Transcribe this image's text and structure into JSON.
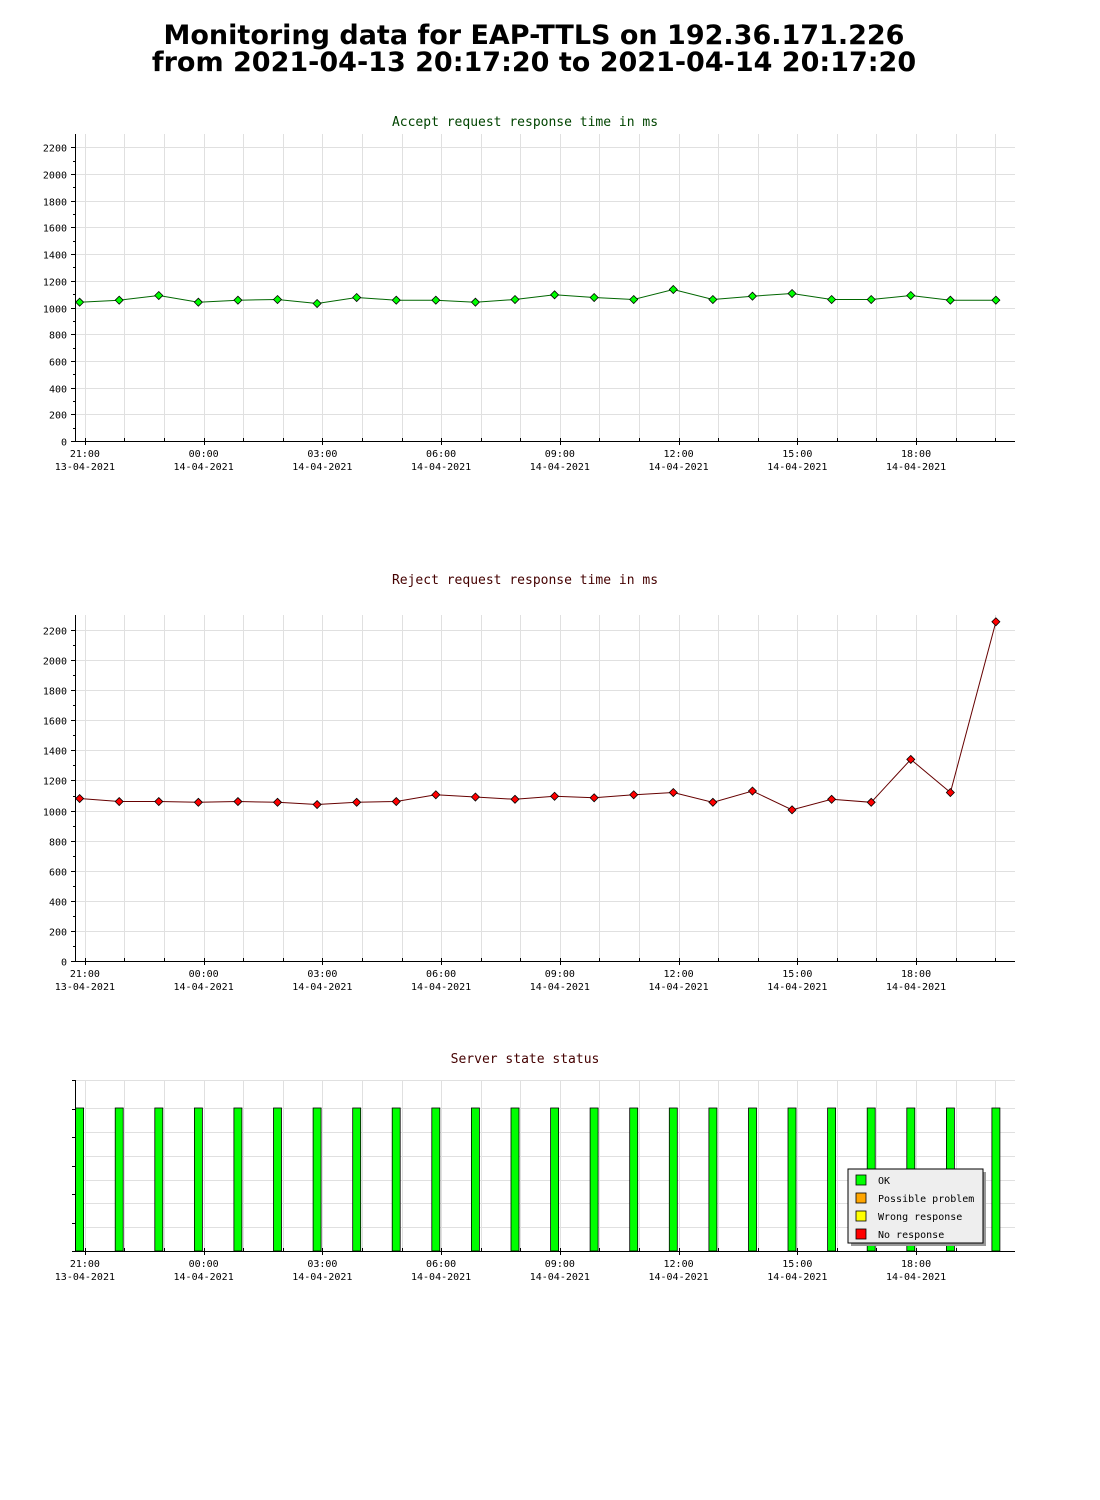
{
  "title": {
    "line1": "Monitoring data for EAP-TTLS on 192.36.171.226",
    "line2": "from 2021-04-13 20:17:20 to 2021-04-14 20:17:20"
  },
  "x_axis": {
    "ticks": [
      {
        "time": "21:00",
        "date": "13-04-2021"
      },
      {
        "time": "00:00",
        "date": "14-04-2021"
      },
      {
        "time": "03:00",
        "date": "14-04-2021"
      },
      {
        "time": "06:00",
        "date": "14-04-2021"
      },
      {
        "time": "09:00",
        "date": "14-04-2021"
      },
      {
        "time": "12:00",
        "date": "14-04-2021"
      },
      {
        "time": "15:00",
        "date": "14-04-2021"
      },
      {
        "time": "18:00",
        "date": "14-04-2021"
      }
    ]
  },
  "colors": {
    "accept": "#00ff00",
    "reject": "#ff0000",
    "accept_title": "#004400",
    "reject_title": "#440000",
    "ok": "#00ff00",
    "possible_problem": "#ffa500",
    "wrong_response": "#ffff00",
    "no_response": "#ff0000"
  },
  "chart_data": [
    {
      "type": "line",
      "title": "Accept request response time in ms",
      "ylim": [
        0,
        2300
      ],
      "yticks": [
        0,
        200,
        400,
        600,
        800,
        1000,
        1200,
        1400,
        1600,
        1800,
        2000,
        2200
      ],
      "grid": true,
      "x_range": [
        "2021-04-13 20:45",
        "2021-04-14 20:30"
      ],
      "x": [
        "2021-04-13 20:52",
        "2021-04-13 21:52",
        "2021-04-13 22:52",
        "2021-04-13 23:52",
        "2021-04-14 00:52",
        "2021-04-14 01:52",
        "2021-04-14 02:52",
        "2021-04-14 03:52",
        "2021-04-14 04:52",
        "2021-04-14 05:52",
        "2021-04-14 06:52",
        "2021-04-14 07:52",
        "2021-04-14 08:52",
        "2021-04-14 09:52",
        "2021-04-14 10:52",
        "2021-04-14 11:52",
        "2021-04-14 12:52",
        "2021-04-14 13:52",
        "2021-04-14 14:52",
        "2021-04-14 15:52",
        "2021-04-14 16:52",
        "2021-04-14 17:52",
        "2021-04-14 18:52",
        "2021-04-14 20:01"
      ],
      "series": [
        {
          "values": [
            1040,
            1055,
            1090,
            1040,
            1055,
            1060,
            1030,
            1075,
            1055,
            1055,
            1040,
            1060,
            1095,
            1075,
            1060,
            1135,
            1060,
            1085,
            1105,
            1060,
            1060,
            1090,
            1055,
            1055
          ]
        }
      ]
    },
    {
      "type": "line",
      "title": "Reject request response time in ms",
      "ylim": [
        0,
        2300
      ],
      "yticks": [
        0,
        200,
        400,
        600,
        800,
        1000,
        1200,
        1400,
        1600,
        1800,
        2000,
        2200
      ],
      "grid": true,
      "x_range": [
        "2021-04-13 20:45",
        "2021-04-14 20:30"
      ],
      "x": [
        "2021-04-13 20:52",
        "2021-04-13 21:52",
        "2021-04-13 22:52",
        "2021-04-13 23:52",
        "2021-04-14 00:52",
        "2021-04-14 01:52",
        "2021-04-14 02:52",
        "2021-04-14 03:52",
        "2021-04-14 04:52",
        "2021-04-14 05:52",
        "2021-04-14 06:52",
        "2021-04-14 07:52",
        "2021-04-14 08:52",
        "2021-04-14 09:52",
        "2021-04-14 10:52",
        "2021-04-14 11:52",
        "2021-04-14 12:52",
        "2021-04-14 13:52",
        "2021-04-14 14:52",
        "2021-04-14 15:52",
        "2021-04-14 16:52",
        "2021-04-14 17:52",
        "2021-04-14 18:52",
        "2021-04-14 20:01"
      ],
      "series": [
        {
          "values": [
            1080,
            1060,
            1060,
            1055,
            1060,
            1055,
            1040,
            1055,
            1060,
            1105,
            1090,
            1075,
            1095,
            1085,
            1105,
            1120,
            1055,
            1130,
            1005,
            1075,
            1055,
            1340,
            1120,
            2255
          ]
        }
      ]
    },
    {
      "type": "bar",
      "title": "Server state status",
      "x_range": [
        "2021-04-13 20:45",
        "2021-04-14 20:30"
      ],
      "x": [
        "2021-04-13 20:52",
        "2021-04-13 21:52",
        "2021-04-13 22:52",
        "2021-04-13 23:52",
        "2021-04-14 00:52",
        "2021-04-14 01:52",
        "2021-04-14 02:52",
        "2021-04-14 03:52",
        "2021-04-14 04:52",
        "2021-04-14 05:52",
        "2021-04-14 06:52",
        "2021-04-14 07:52",
        "2021-04-14 08:52",
        "2021-04-14 09:52",
        "2021-04-14 10:52",
        "2021-04-14 11:52",
        "2021-04-14 12:52",
        "2021-04-14 13:52",
        "2021-04-14 14:52",
        "2021-04-14 15:52",
        "2021-04-14 16:52",
        "2021-04-14 17:52",
        "2021-04-14 18:52",
        "2021-04-14 20:01"
      ],
      "status": [
        "OK",
        "OK",
        "OK",
        "OK",
        "OK",
        "OK",
        "OK",
        "OK",
        "OK",
        "OK",
        "OK",
        "OK",
        "OK",
        "OK",
        "OK",
        "OK",
        "OK",
        "OK",
        "OK",
        "OK",
        "OK",
        "OK",
        "OK",
        "OK"
      ],
      "legend_placement": "bottom-right",
      "legend": [
        "OK",
        "Possible problem",
        "Wrong response",
        "No response"
      ]
    }
  ]
}
